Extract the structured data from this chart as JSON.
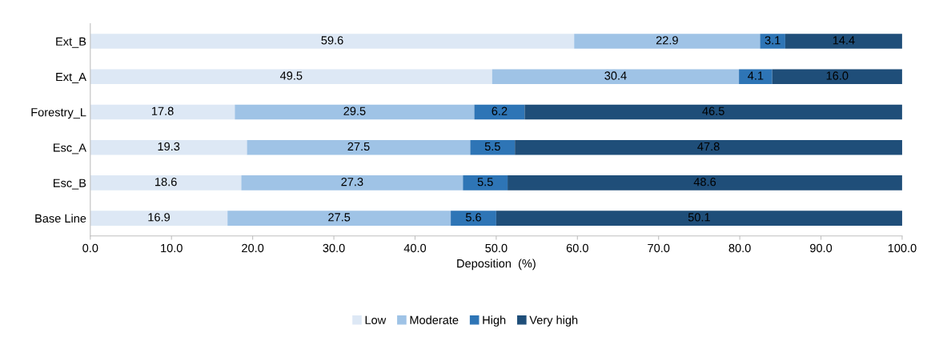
{
  "chart_data": {
    "type": "bar",
    "orientation": "horizontal",
    "stacked": true,
    "xlabel": "Deposition  (%)",
    "categories": [
      "Ext_B",
      "Ext_A",
      "Forestry_L",
      "Esc_A",
      "Esc_B",
      "Base Line"
    ],
    "series": [
      {
        "name": "Low",
        "color": "#dde8f5",
        "values": [
          59.6,
          49.5,
          17.8,
          19.3,
          18.6,
          16.9
        ],
        "value_labels": [
          "59.6",
          "49.5",
          "17.8",
          "19.3",
          "18.6",
          "16.9"
        ]
      },
      {
        "name": "Moderate",
        "color": "#9fc3e6",
        "values": [
          22.9,
          30.4,
          29.5,
          27.5,
          27.3,
          27.5
        ],
        "value_labels": [
          "22.9",
          "30.4",
          "29.5",
          "27.5",
          "27.3",
          "27.5"
        ]
      },
      {
        "name": "High",
        "color": "#2e75b6",
        "values": [
          3.1,
          4.1,
          6.2,
          5.5,
          5.5,
          5.6
        ],
        "value_labels": [
          "3.1",
          "4.1",
          "6.2",
          "5.5",
          "5.5",
          "5.6"
        ]
      },
      {
        "name": "Very high",
        "color": "#1f4e79",
        "values": [
          14.4,
          16.0,
          46.5,
          47.8,
          48.6,
          50.1
        ],
        "value_labels": [
          "14.4",
          "16.0",
          "46.5",
          "47.8",
          "48.6",
          "50.1"
        ]
      }
    ],
    "xlim": [
      0,
      100
    ],
    "xticks": [
      {
        "value": 0,
        "label": "0.0"
      },
      {
        "value": 10,
        "label": "10.0"
      },
      {
        "value": 20,
        "label": "20.0"
      },
      {
        "value": 30,
        "label": "30.0"
      },
      {
        "value": 40,
        "label": "40.0"
      },
      {
        "value": 50,
        "label": "50.0"
      },
      {
        "value": 60,
        "label": "60.0"
      },
      {
        "value": 70,
        "label": "70.0"
      },
      {
        "value": 80,
        "label": "80.0"
      },
      {
        "value": 90,
        "label": "90.0"
      },
      {
        "value": 100,
        "label": "100.0"
      }
    ],
    "grid": false,
    "legend": "bottom"
  }
}
